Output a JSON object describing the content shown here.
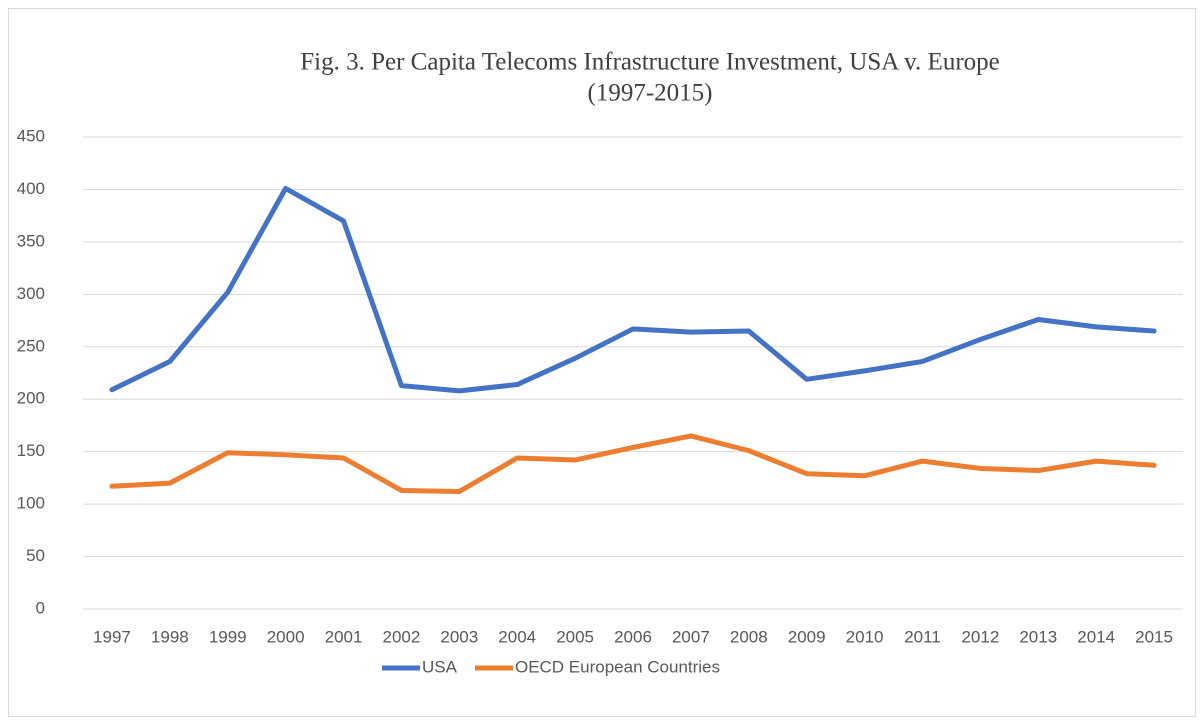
{
  "chart_data": {
    "type": "line",
    "title": [
      "Fig. 3.  Per Capita Telecoms Infrastructure Investment, USA v. Europe",
      "(1997-2015)"
    ],
    "categories": [
      "1997",
      "1998",
      "1999",
      "2000",
      "2001",
      "2002",
      "2003",
      "2004",
      "2005",
      "2006",
      "2007",
      "2008",
      "2009",
      "2010",
      "2011",
      "2012",
      "2013",
      "2014",
      "2015"
    ],
    "series": [
      {
        "name": "USA",
        "color": "#4472c4",
        "values": [
          209,
          236,
          302,
          401,
          370,
          213,
          208,
          214,
          239,
          267,
          264,
          265,
          219,
          227,
          236,
          257,
          276,
          269,
          265
        ]
      },
      {
        "name": "OECD European Countries",
        "color": "#ed7d31",
        "values": [
          117,
          120,
          149,
          147,
          144,
          113,
          112,
          144,
          142,
          154,
          165,
          151,
          129,
          127,
          141,
          134,
          132,
          141,
          137
        ]
      }
    ],
    "ylim": [
      0,
      450
    ],
    "yticks": [
      0,
      50,
      100,
      150,
      200,
      250,
      300,
      350,
      400,
      450
    ],
    "grid": true,
    "legend": "bottom"
  }
}
